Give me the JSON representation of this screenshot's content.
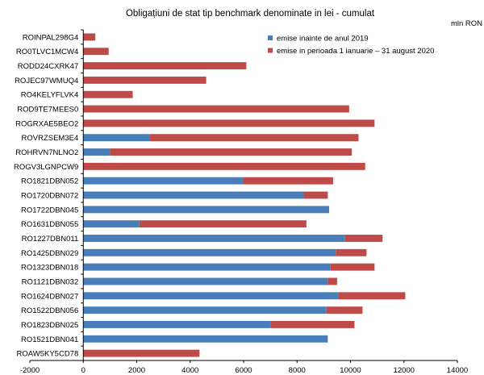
{
  "chart_data": {
    "type": "bar",
    "orientation": "horizontal",
    "stacked": true,
    "title": "Obligațiuni de stat tip benchmark denominate in lei - cumulat",
    "unit_label": "mln RON",
    "xlim": [
      -2000,
      14000
    ],
    "xticks": [
      -2000,
      0,
      2000,
      4000,
      6000,
      8000,
      10000,
      12000,
      14000
    ],
    "grid": false,
    "legend_position": "top-right",
    "categories": [
      "ROINPAL298G4",
      "RO0TLVC1MCW4",
      "RODD24CXRK47",
      "ROJEC97WMUQ4",
      "RO4KELYFLVK4",
      "ROD9TE7MEES0",
      "ROGRXAE5BEO2",
      "ROVRZSEM3E4",
      "ROHRVN7NLNO2",
      "ROGV3LGNPCW9",
      "RO1821DBN052",
      "RO1720DBN072",
      "RO1722DBN045",
      "RO1631DBN055",
      "RO1227DBN011",
      "RO1425DBN029",
      "RO1323DBN018",
      "RO1121DBN032",
      "RO1624DBN027",
      "RO1522DBN056",
      "RO1823DBN025",
      "RO1521DBN041",
      "ROAW5KY5CD78"
    ],
    "series": [
      {
        "name": "emise inainte de anul 2019",
        "color": "#4a7ebb",
        "values": [
          0,
          0,
          0,
          0,
          0,
          0,
          0,
          2500,
          1000,
          0,
          6000,
          8250,
          9200,
          2100,
          9800,
          9450,
          9250,
          9150,
          9550,
          9100,
          7000,
          9150,
          0
        ]
      },
      {
        "name": "emise in perioada 1 ianuarie – 31 august 2020",
        "color": "#be4b48",
        "values": [
          450,
          950,
          6100,
          4600,
          1850,
          9950,
          10900,
          7800,
          9050,
          10550,
          3350,
          900,
          0,
          6250,
          1400,
          1150,
          1650,
          350,
          2500,
          1350,
          3150,
          0,
          4350
        ]
      }
    ]
  }
}
